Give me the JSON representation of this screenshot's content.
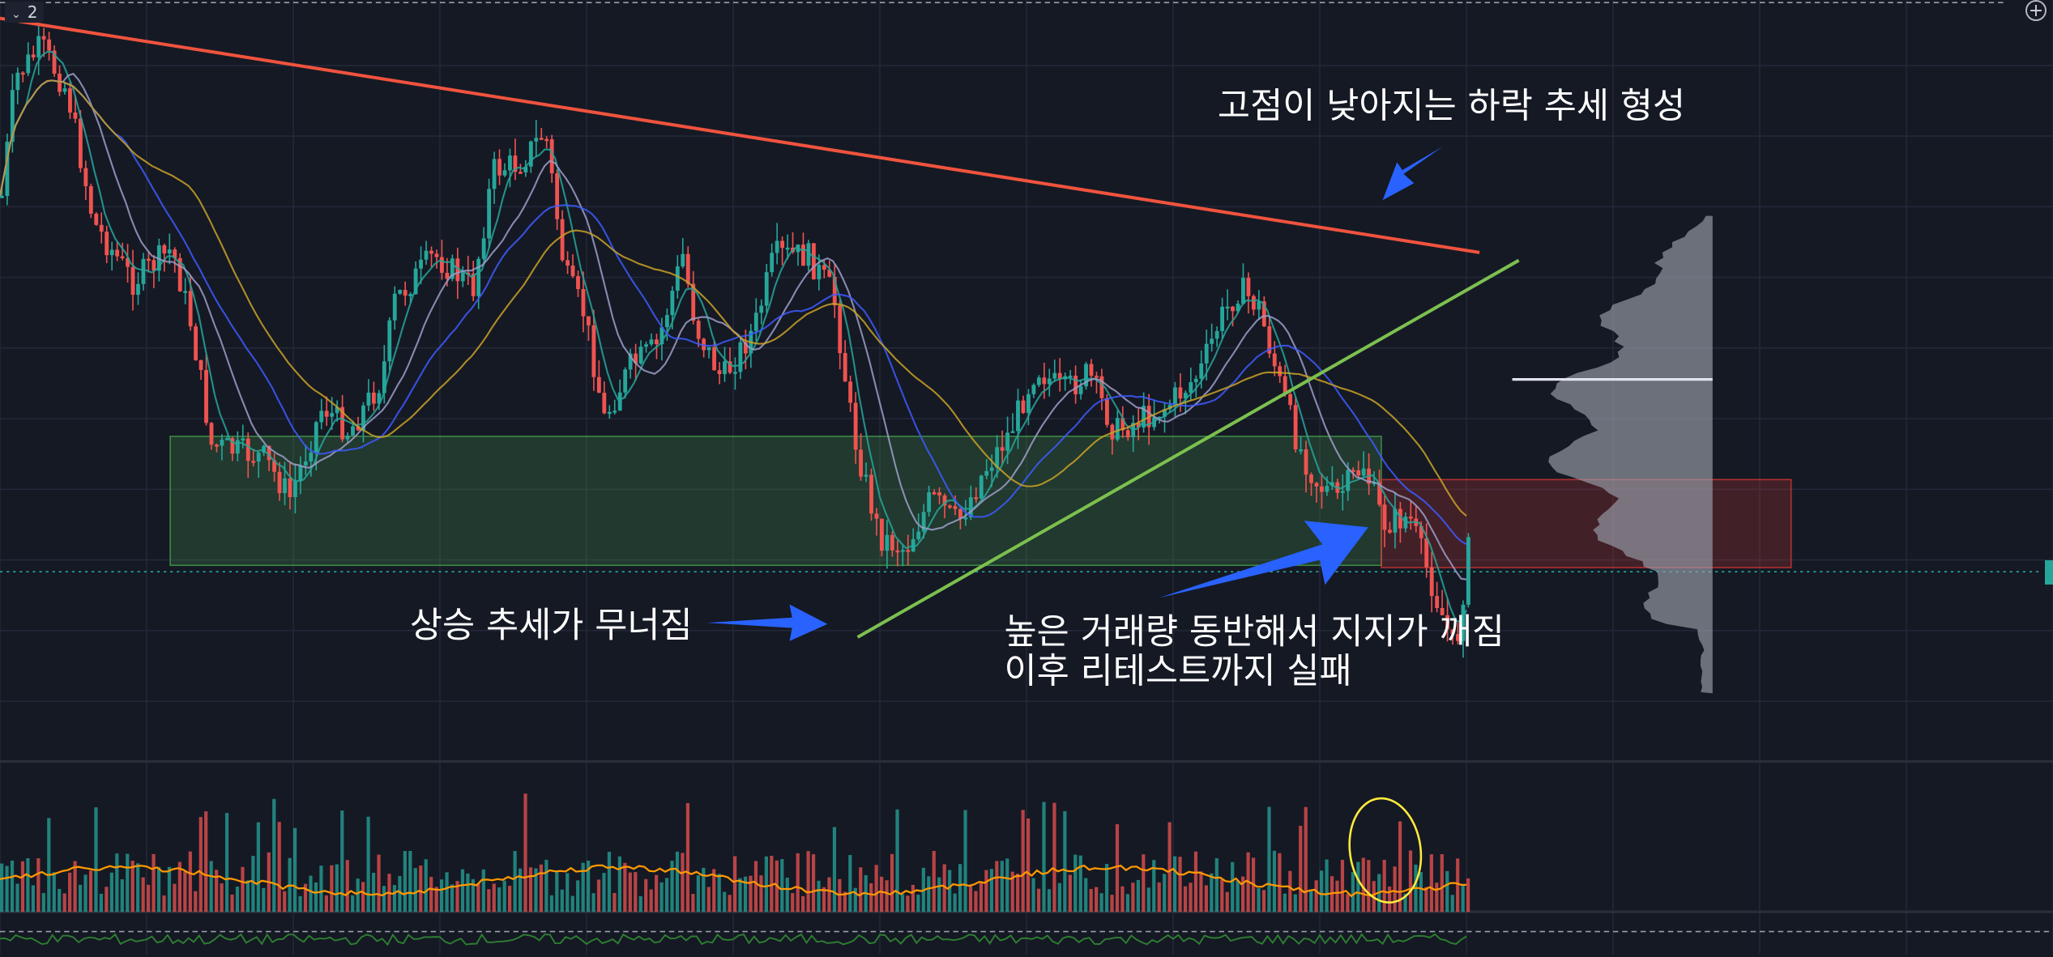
{
  "pane": {
    "toggle_label": "2",
    "toggle_icon": "chevron-down-icon",
    "add_icon": "plus-circle-icon",
    "add_label": "+"
  },
  "colors": {
    "background": "#151924",
    "grid": "#232838",
    "up": "#26a69a",
    "down": "#ef5350",
    "resistance_line": "#f0533e",
    "support_line": "#7cc04f",
    "support_zone": "#4caf50",
    "resistance_zone": "#e53935",
    "arrow": "#2962ff",
    "ma_fast": "#26a69a",
    "ma_mid": "#9e9ec9",
    "ma_slow": "#3d5afe",
    "ma_long": "#c9a227",
    "volume_ma": "#ff9800",
    "volume_profile": "#9aa0ab",
    "poc": "#e0e3eb",
    "circle": "#ffeb3b"
  },
  "chart_data": {
    "type": "candlestick",
    "annotations": [
      {
        "id": "lower-highs",
        "text": "고점이 낮아지는 하락 추세 형성"
      },
      {
        "id": "uptrend-broken",
        "text": "상승 추세가 무너짐"
      },
      {
        "id": "support-broken",
        "lines": [
          "높은 거래량 동반해서 지지가 깨짐",
          "이후 리테스트까지 실패"
        ]
      }
    ],
    "trendlines": [
      {
        "name": "descending-resistance",
        "from": [
          0,
          0.02
        ],
        "to": [
          1130,
          0.265
        ]
      },
      {
        "name": "ascending-support",
        "from": [
          655,
          0.905
        ],
        "to": [
          1160,
          0.37
        ]
      }
    ],
    "zones": [
      {
        "name": "support-zone",
        "x_start": 130,
        "x_end": 1055,
        "price_top": 0.575,
        "price_bottom": 0.745
      },
      {
        "name": "resistance-zone",
        "x_start": 1055,
        "x_end": 1368,
        "price_top": 0.632,
        "price_bottom": 0.748
      }
    ],
    "volume_profile": {
      "poc_price": 0.535,
      "price_range": [
        0.3,
        0.98
      ]
    },
    "grid": true,
    "legend": "none"
  }
}
